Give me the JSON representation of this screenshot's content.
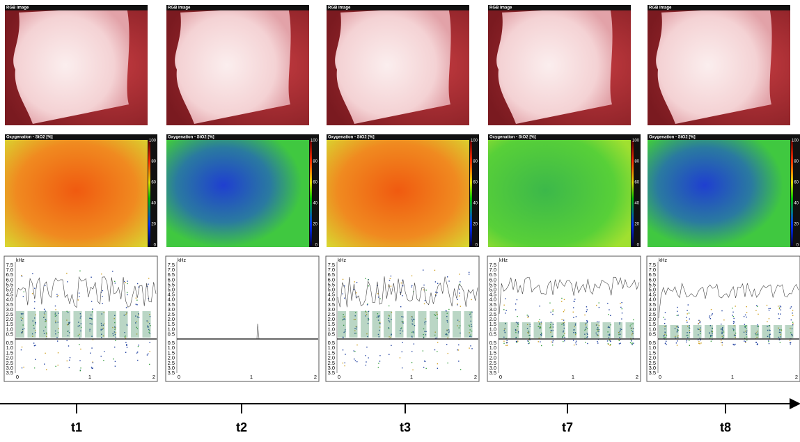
{
  "rgb_title": "RGB Image",
  "oxygenation_title": "Oxygenation - StO2 [%]",
  "colorbar_ticks": [
    "100",
    "80",
    "60",
    "40",
    "20",
    "0"
  ],
  "spectrogram": {
    "unit": "kHz",
    "upper_ticks": [
      "7.5",
      "7.0",
      "6.5",
      "6.0",
      "5.5",
      "5.0",
      "4.5",
      "4.0",
      "3.5",
      "3.0",
      "2.5",
      "2.0",
      "1.5",
      "1.0",
      "0.5"
    ],
    "lower_ticks": [
      "0.5",
      "1.0",
      "1.5",
      "2.0",
      "2.5",
      "3.0",
      "3.5"
    ],
    "x_ticks": [
      "0",
      "1",
      "2"
    ]
  },
  "columns": [
    {
      "time": "t1"
    },
    {
      "time": "t2"
    },
    {
      "time": "t3"
    },
    {
      "time": "t7"
    },
    {
      "time": "t8"
    }
  ]
}
